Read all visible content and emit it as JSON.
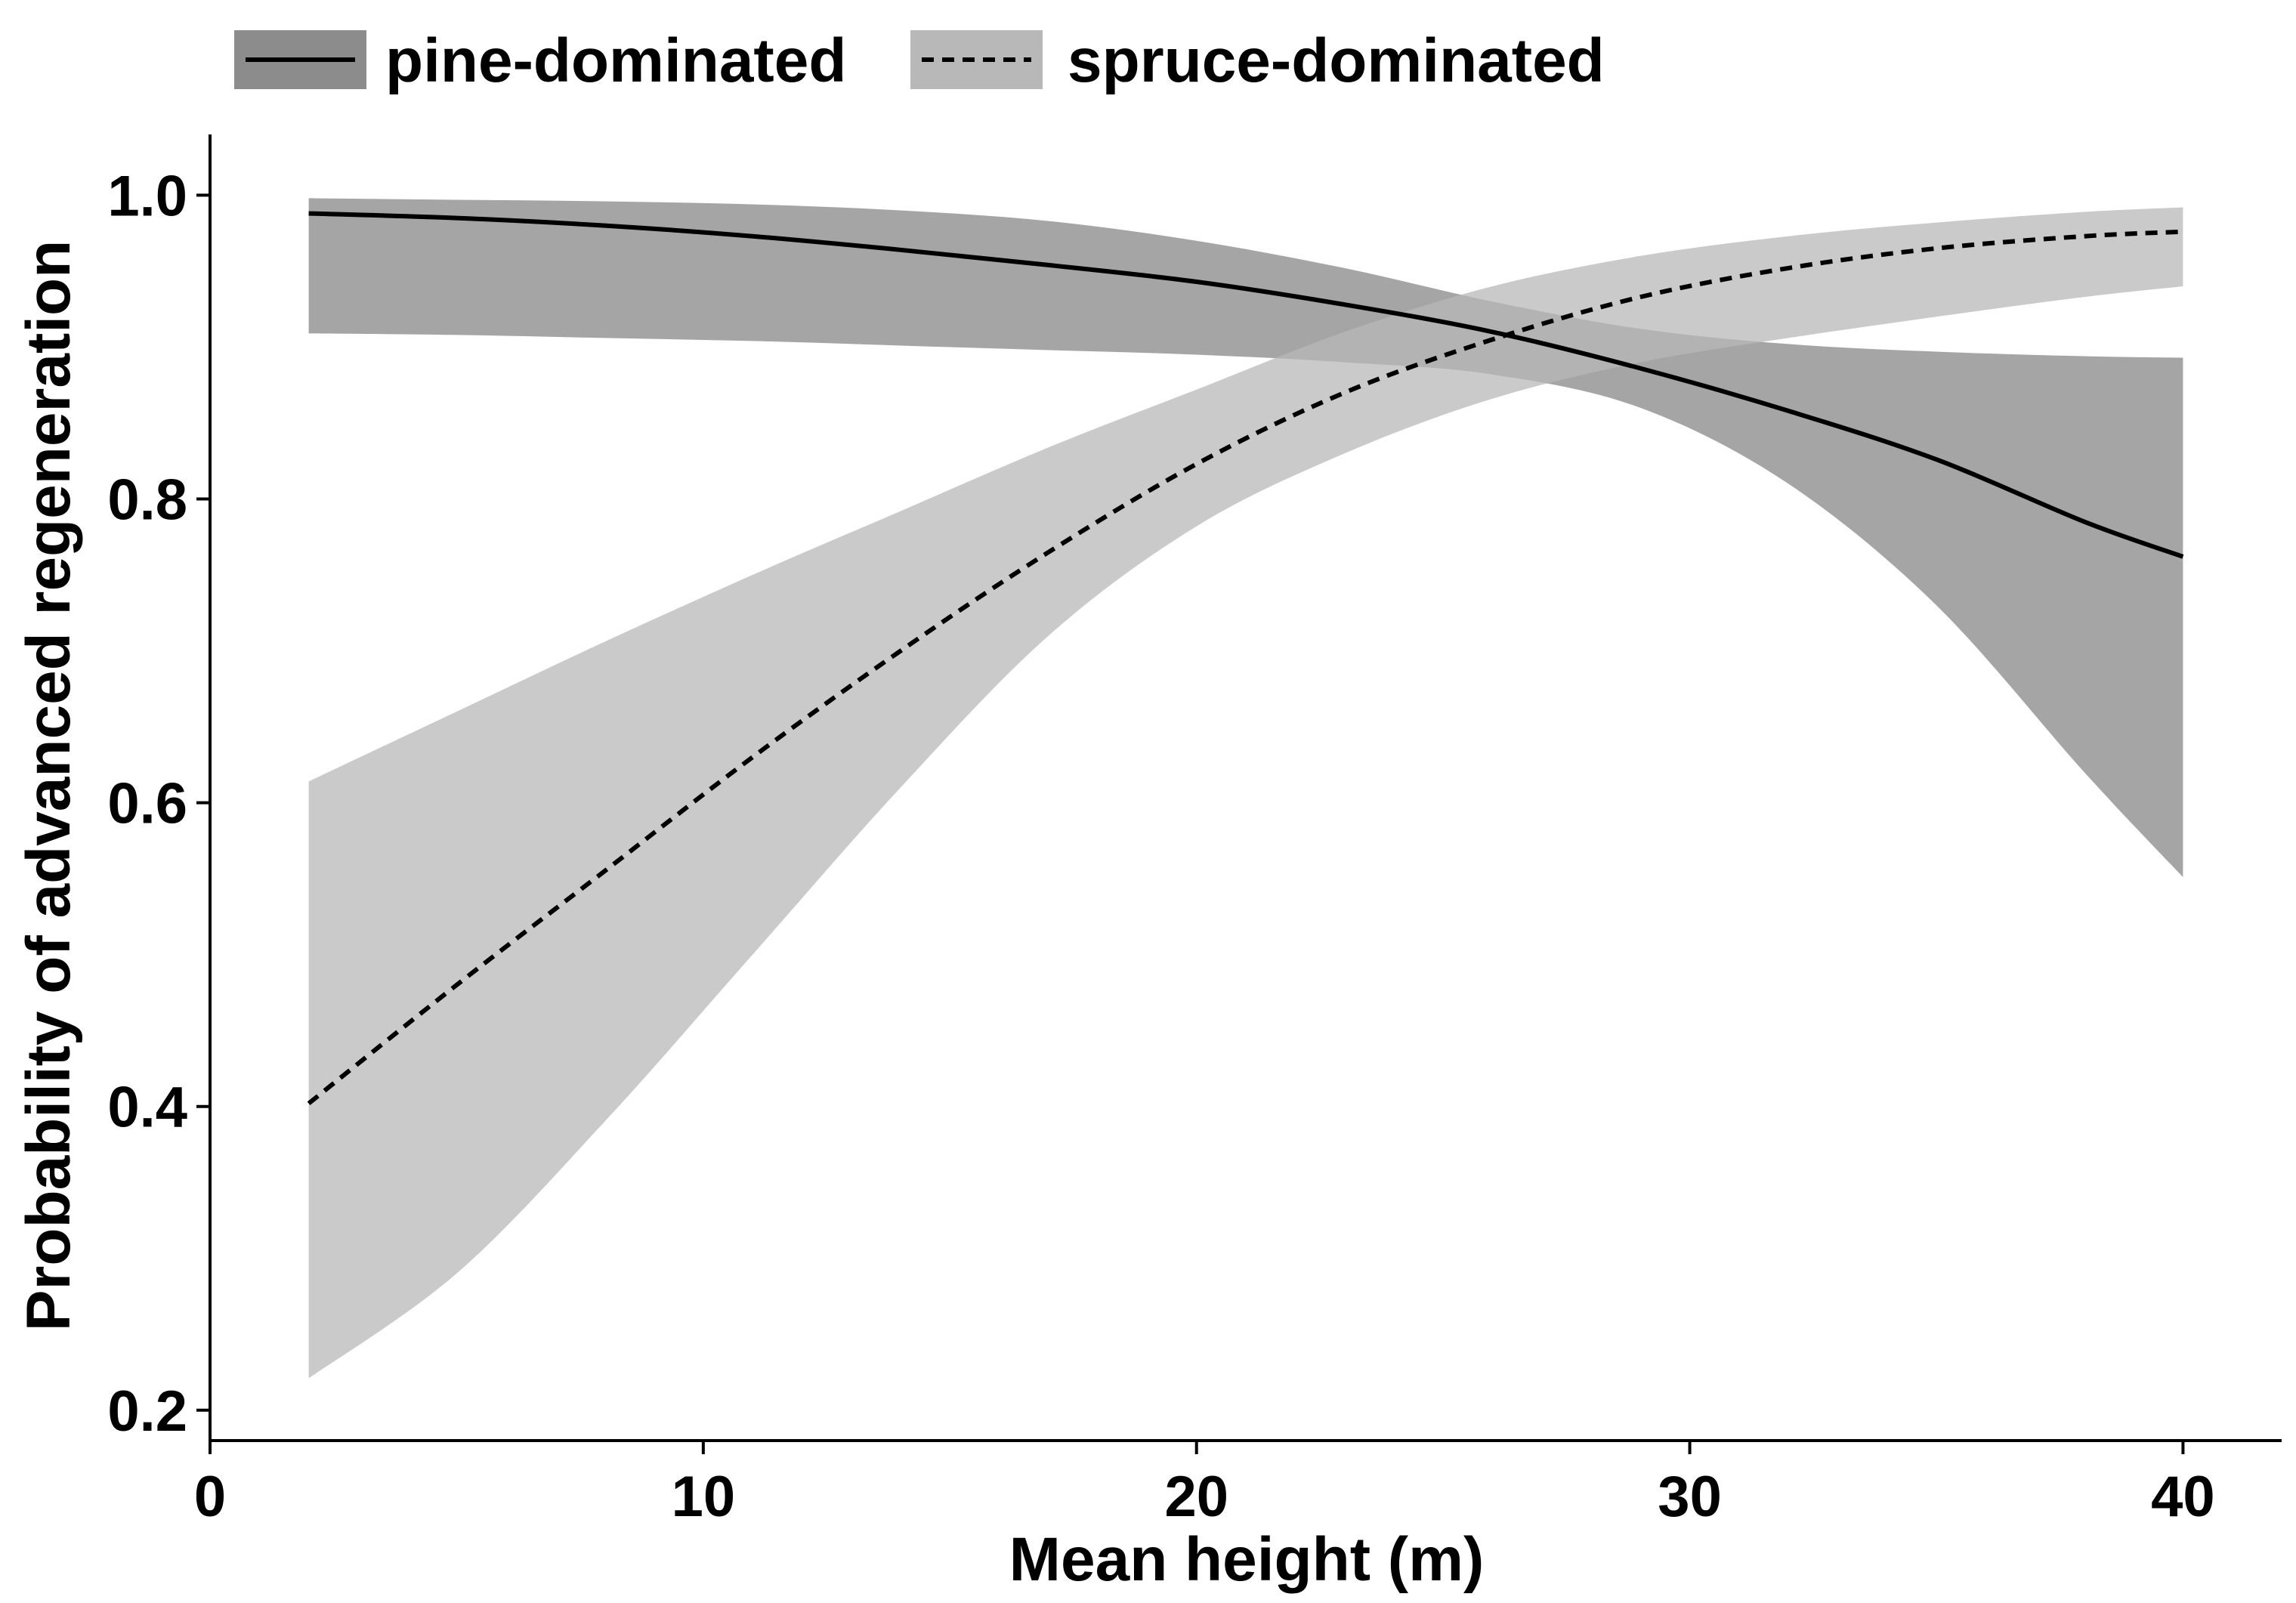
{
  "chart_data": {
    "type": "line",
    "title": "",
    "xlabel": "Mean height (m)",
    "ylabel": "Probability of advanced regeneration",
    "xlim": [
      0,
      42
    ],
    "ylim": [
      0.18,
      1.04
    ],
    "xticks": [
      0,
      10,
      20,
      30,
      40
    ],
    "xtick_labels": [
      "0",
      "10",
      "20",
      "30",
      "40"
    ],
    "yticks": [
      0.2,
      0.4,
      0.6,
      0.8,
      1.0
    ],
    "ytick_labels": [
      "0.2",
      "0.4",
      "0.6",
      "0.8",
      "1.0"
    ],
    "grid": false,
    "legend_position": "top",
    "x": [
      2,
      5,
      8,
      11,
      14,
      17,
      20,
      23,
      26,
      29,
      32,
      35,
      38,
      40
    ],
    "series": [
      {
        "name": "pine-dominated",
        "line_style": "solid",
        "line_color": "#000000",
        "band_color": "#8c8c8c",
        "values": [
          0.988,
          0.985,
          0.98,
          0.973,
          0.964,
          0.954,
          0.943,
          0.928,
          0.91,
          0.886,
          0.858,
          0.826,
          0.785,
          0.762
        ],
        "lower": [
          0.909,
          0.908,
          0.906,
          0.904,
          0.901,
          0.898,
          0.895,
          0.89,
          0.882,
          0.86,
          0.81,
          0.73,
          0.62,
          0.551
        ],
        "upper": [
          0.998,
          0.997,
          0.996,
          0.994,
          0.99,
          0.983,
          0.97,
          0.952,
          0.93,
          0.912,
          0.902,
          0.897,
          0.894,
          0.893
        ]
      },
      {
        "name": "spruce-dominated",
        "line_style": "dashed",
        "line_color": "#000000",
        "band_color": "#b8b8b8",
        "values": [
          0.402,
          0.48,
          0.555,
          0.63,
          0.7,
          0.765,
          0.823,
          0.87,
          0.905,
          0.933,
          0.952,
          0.965,
          0.973,
          0.976
        ],
        "lower": [
          0.221,
          0.29,
          0.39,
          0.5,
          0.61,
          0.71,
          0.782,
          0.83,
          0.866,
          0.89,
          0.906,
          0.92,
          0.933,
          0.94
        ],
        "upper": [
          0.614,
          0.66,
          0.706,
          0.75,
          0.792,
          0.834,
          0.872,
          0.91,
          0.94,
          0.96,
          0.973,
          0.982,
          0.989,
          0.992
        ]
      }
    ]
  }
}
